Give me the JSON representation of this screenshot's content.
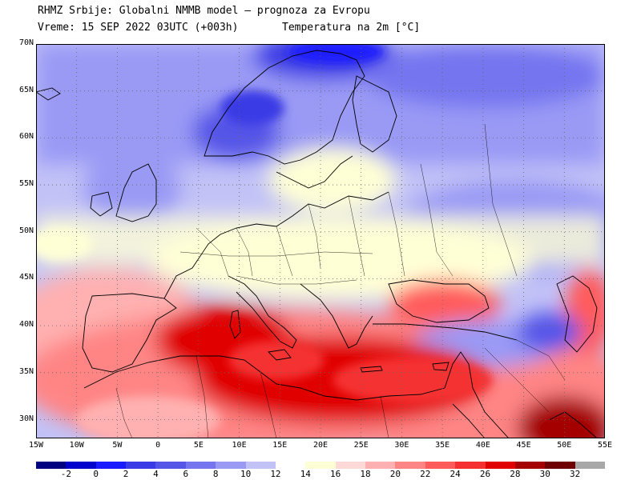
{
  "header": {
    "line1": "RHMZ Srbije: Globalni NMMB model — prognoza za Evropu",
    "line2": "Vreme: 15 SEP 2022 03UTC (+003h)",
    "parameter": "Temperatura na 2m [°C]"
  },
  "axes": {
    "lat_labels": [
      "70N",
      "65N",
      "60N",
      "55N",
      "50N",
      "45N",
      "40N",
      "35N",
      "30N"
    ],
    "lon_labels": [
      "15W",
      "10W",
      "5W",
      "0",
      "5E",
      "10E",
      "15E",
      "20E",
      "25E",
      "30E",
      "35E",
      "40E",
      "45E",
      "50E",
      "55E"
    ]
  },
  "colorbar": {
    "labels": [
      "-2",
      "0",
      "2",
      "4",
      "6",
      "8",
      "10",
      "12",
      "14",
      "16",
      "18",
      "20",
      "22",
      "24",
      "26",
      "28",
      "30",
      "32"
    ],
    "colors": [
      "#000080",
      "#0000cd",
      "#1a1aff",
      "#3a3ae6",
      "#5555e8",
      "#7575f0",
      "#9a9af5",
      "#c2c2f7",
      "#ffffff",
      "#ffffd6",
      "#ffd8d8",
      "#ffb0b0",
      "#ff8585",
      "#ff5b5b",
      "#f53030",
      "#e00000",
      "#a50000",
      "#6e0000",
      "#a8a8a8"
    ]
  },
  "map": {
    "lon_range": [
      -15,
      55
    ],
    "lat_range": [
      28,
      70
    ],
    "grid": "dotted",
    "colors": {
      "ocean_north": "#9a9af5",
      "scandinavia_mountains": "#3a3ae6",
      "central_europe": "#ffffd6",
      "mediterranean": "#e00000",
      "north_africa": "#ff8585",
      "arabia_hot": "#a50000",
      "coastline": "#000000"
    }
  }
}
